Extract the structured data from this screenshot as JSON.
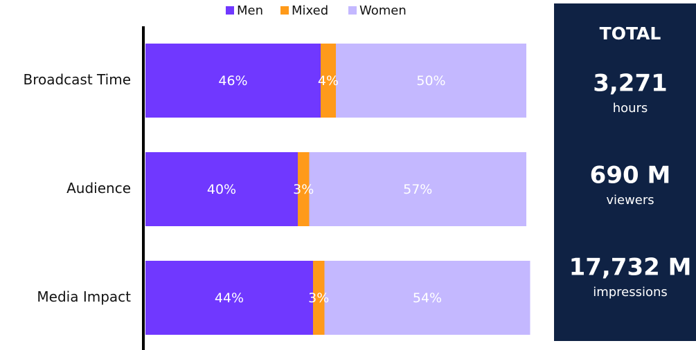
{
  "chart_data": {
    "type": "stacked_bar_horizontal",
    "categories": [
      "Broadcast Time",
      "Audience",
      "Media Impact"
    ],
    "series": [
      {
        "name": "Men",
        "color": "#7038ff",
        "values": [
          46,
          40,
          44
        ],
        "value_labels": [
          "46%",
          "40%",
          "44%"
        ]
      },
      {
        "name": "Mixed",
        "color": "#ff9a1a",
        "values": [
          4,
          3,
          3
        ],
        "value_labels": [
          "4%",
          "3%",
          "3%"
        ]
      },
      {
        "name": "Women",
        "color": "#c4b8ff",
        "values": [
          50,
          57,
          54
        ],
        "value_labels": [
          "50%",
          "57%",
          "54%"
        ]
      }
    ],
    "xlim": [
      0,
      100
    ],
    "legend": "top"
  },
  "panel": {
    "title": "TOTAL",
    "items": [
      {
        "value": "3,271",
        "unit": "hours"
      },
      {
        "value": "690 M",
        "unit": "viewers"
      },
      {
        "value": "17,732 M",
        "unit": "impressions"
      }
    ]
  }
}
